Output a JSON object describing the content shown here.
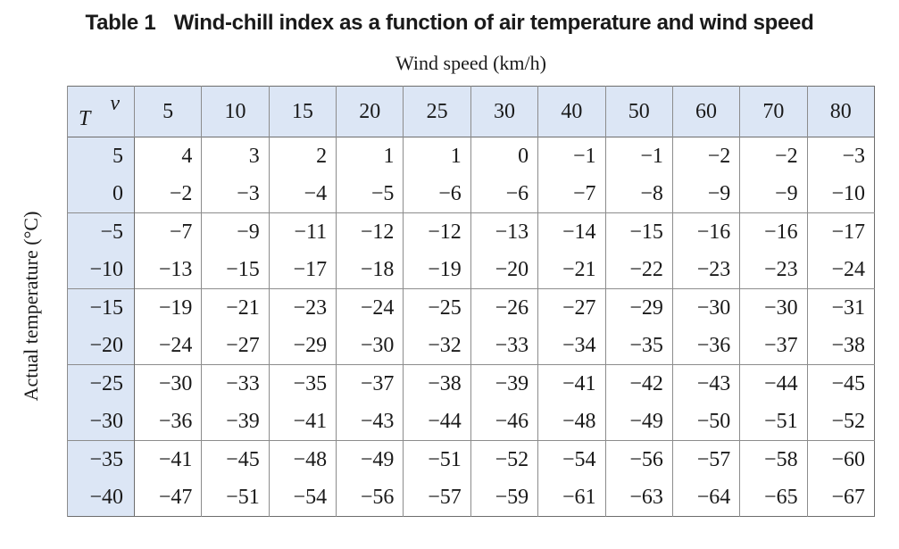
{
  "caption": {
    "number": "Table 1",
    "title": "Wind-chill index as a function of air temperature and wind speed"
  },
  "column_axis_label": "Wind speed (km/h)",
  "row_axis_label": "Actual temperature (°C)",
  "corner": {
    "col_symbol": "v",
    "row_symbol": "T"
  },
  "wind_speeds": [
    "5",
    "10",
    "15",
    "20",
    "25",
    "30",
    "40",
    "50",
    "60",
    "70",
    "80"
  ],
  "rows": [
    {
      "temp": "5",
      "values": [
        "4",
        "3",
        "2",
        "1",
        "1",
        "0",
        "−1",
        "−1",
        "−2",
        "−2",
        "−3"
      ]
    },
    {
      "temp": "0",
      "values": [
        "−2",
        "−3",
        "−4",
        "−5",
        "−6",
        "−6",
        "−7",
        "−8",
        "−9",
        "−9",
        "−10"
      ]
    },
    {
      "temp": "−5",
      "values": [
        "−7",
        "−9",
        "−11",
        "−12",
        "−12",
        "−13",
        "−14",
        "−15",
        "−16",
        "−16",
        "−17"
      ]
    },
    {
      "temp": "−10",
      "values": [
        "−13",
        "−15",
        "−17",
        "−18",
        "−19",
        "−20",
        "−21",
        "−22",
        "−23",
        "−23",
        "−24"
      ]
    },
    {
      "temp": "−15",
      "values": [
        "−19",
        "−21",
        "−23",
        "−24",
        "−25",
        "−26",
        "−27",
        "−29",
        "−30",
        "−30",
        "−31"
      ]
    },
    {
      "temp": "−20",
      "values": [
        "−24",
        "−27",
        "−29",
        "−30",
        "−32",
        "−33",
        "−34",
        "−35",
        "−36",
        "−37",
        "−38"
      ]
    },
    {
      "temp": "−25",
      "values": [
        "−30",
        "−33",
        "−35",
        "−37",
        "−38",
        "−39",
        "−41",
        "−42",
        "−43",
        "−44",
        "−45"
      ]
    },
    {
      "temp": "−30",
      "values": [
        "−36",
        "−39",
        "−41",
        "−43",
        "−44",
        "−46",
        "−48",
        "−49",
        "−50",
        "−51",
        "−52"
      ]
    },
    {
      "temp": "−35",
      "values": [
        "−41",
        "−45",
        "−48",
        "−49",
        "−51",
        "−52",
        "−54",
        "−56",
        "−57",
        "−58",
        "−60"
      ]
    },
    {
      "temp": "−40",
      "values": [
        "−47",
        "−51",
        "−54",
        "−56",
        "−57",
        "−59",
        "−61",
        "−63",
        "−64",
        "−65",
        "−67"
      ]
    }
  ],
  "colors": {
    "header_fill": "#dce6f5",
    "border": "#8c8c8c"
  }
}
